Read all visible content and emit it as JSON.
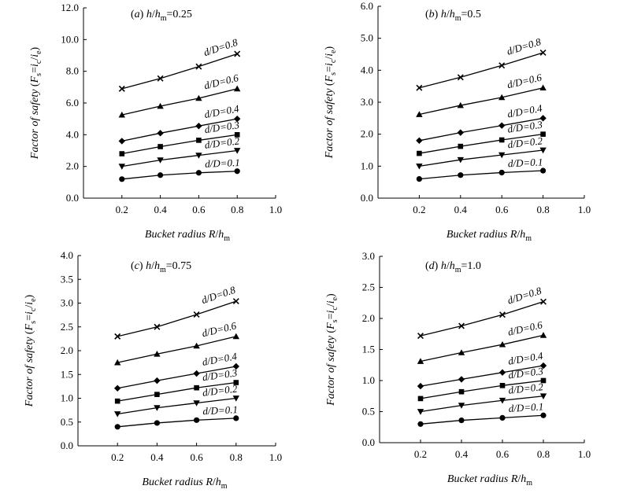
{
  "chart_data": [
    {
      "type": "line",
      "title": "(a) h/hm=0.25",
      "xlabel": "Bucket radius R/hm",
      "ylabel": "Factor of safety (Fs=ic/ie)",
      "xlim": [
        0.0,
        1.0
      ],
      "ylim": [
        0.0,
        12.0
      ],
      "xticks": [
        "0.2",
        "0.4",
        "0.6",
        "0.8",
        "1.0"
      ],
      "yticks": [
        "0.0",
        "2.0",
        "4.0",
        "6.0",
        "8.0",
        "10.0",
        "12.0"
      ],
      "x": [
        0.2,
        0.4,
        0.6,
        0.8
      ],
      "series": [
        {
          "name": "d/D=0.1",
          "marker": "circle",
          "values": [
            1.2,
            1.45,
            1.6,
            1.7
          ]
        },
        {
          "name": "d/D=0.2",
          "marker": "triangle-down",
          "values": [
            2.0,
            2.4,
            2.7,
            3.0
          ]
        },
        {
          "name": "d/D=0.3",
          "marker": "square",
          "values": [
            2.8,
            3.25,
            3.65,
            4.0
          ]
        },
        {
          "name": "d/D=0.4",
          "marker": "diamond",
          "values": [
            3.6,
            4.1,
            4.55,
            5.0
          ]
        },
        {
          "name": "d/D=0.6",
          "marker": "triangle-up",
          "values": [
            5.25,
            5.8,
            6.3,
            6.9
          ]
        },
        {
          "name": "d/D=0.8",
          "marker": "x",
          "values": [
            6.9,
            7.55,
            8.3,
            9.1
          ]
        }
      ]
    },
    {
      "type": "line",
      "title": "(b) h/hm=0.5",
      "xlabel": "Bucket radius R/hm",
      "ylabel": "Factor of safety (Fs=ic/ie)",
      "xlim": [
        0.0,
        1.0
      ],
      "ylim": [
        0.0,
        6.0
      ],
      "xticks": [
        "0.2",
        "0.4",
        "0.6",
        "0.8",
        "1.0"
      ],
      "yticks": [
        "0.0",
        "1.0",
        "2.0",
        "3.0",
        "4.0",
        "5.0",
        "6.0"
      ],
      "x": [
        0.2,
        0.4,
        0.6,
        0.8
      ],
      "series": [
        {
          "name": "d/D=0.1",
          "marker": "circle",
          "values": [
            0.6,
            0.72,
            0.8,
            0.86
          ]
        },
        {
          "name": "d/D=0.2",
          "marker": "triangle-down",
          "values": [
            1.0,
            1.2,
            1.35,
            1.5
          ]
        },
        {
          "name": "d/D=0.3",
          "marker": "square",
          "values": [
            1.4,
            1.62,
            1.82,
            2.0
          ]
        },
        {
          "name": "d/D=0.4",
          "marker": "diamond",
          "values": [
            1.8,
            2.05,
            2.27,
            2.5
          ]
        },
        {
          "name": "d/D=0.6",
          "marker": "triangle-up",
          "values": [
            2.62,
            2.9,
            3.15,
            3.45
          ]
        },
        {
          "name": "d/D=0.8",
          "marker": "x",
          "values": [
            3.45,
            3.78,
            4.15,
            4.55
          ]
        }
      ]
    },
    {
      "type": "line",
      "title": "(c) h/hm=0.75",
      "xlabel": "Bucket radius R/hm",
      "ylabel": "Factor of safety (Fs=ic/ie)",
      "xlim": [
        0.0,
        1.0
      ],
      "ylim": [
        0.0,
        4.0
      ],
      "xticks": [
        "0.2",
        "0.4",
        "0.6",
        "0.8",
        "1.0"
      ],
      "yticks": [
        "0.0",
        "0.5",
        "1.0",
        "1.5",
        "2.0",
        "2.5",
        "3.0",
        "3.5",
        "4.0"
      ],
      "x": [
        0.2,
        0.4,
        0.6,
        0.8
      ],
      "series": [
        {
          "name": "d/D=0.1",
          "marker": "circle",
          "values": [
            0.4,
            0.48,
            0.54,
            0.58
          ]
        },
        {
          "name": "d/D=0.2",
          "marker": "triangle-down",
          "values": [
            0.67,
            0.8,
            0.9,
            1.0
          ]
        },
        {
          "name": "d/D=0.3",
          "marker": "square",
          "values": [
            0.94,
            1.08,
            1.22,
            1.33
          ]
        },
        {
          "name": "d/D=0.4",
          "marker": "diamond",
          "values": [
            1.21,
            1.37,
            1.52,
            1.67
          ]
        },
        {
          "name": "d/D=0.6",
          "marker": "triangle-up",
          "values": [
            1.75,
            1.93,
            2.1,
            2.3
          ]
        },
        {
          "name": "d/D=0.8",
          "marker": "x",
          "values": [
            2.3,
            2.5,
            2.76,
            3.04
          ]
        }
      ]
    },
    {
      "type": "line",
      "title": "(d) h/hm=1.0",
      "xlabel": "Bucket radius R/hm",
      "ylabel": "Factor of safety (Fs=ic/ie)",
      "xlim": [
        0.0,
        1.0
      ],
      "ylim": [
        0.0,
        3.0
      ],
      "xticks": [
        "0.2",
        "0.4",
        "0.6",
        "0.8",
        "1.0"
      ],
      "yticks": [
        "0.0",
        "0.5",
        "1.0",
        "1.5",
        "2.0",
        "2.5",
        "3.0"
      ],
      "x": [
        0.2,
        0.4,
        0.6,
        0.8
      ],
      "series": [
        {
          "name": "d/D=0.1",
          "marker": "circle",
          "values": [
            0.3,
            0.36,
            0.4,
            0.44
          ]
        },
        {
          "name": "d/D=0.2",
          "marker": "triangle-down",
          "values": [
            0.5,
            0.6,
            0.68,
            0.75
          ]
        },
        {
          "name": "d/D=0.3",
          "marker": "square",
          "values": [
            0.71,
            0.82,
            0.92,
            1.0
          ]
        },
        {
          "name": "d/D=0.4",
          "marker": "diamond",
          "values": [
            0.91,
            1.02,
            1.13,
            1.24
          ]
        },
        {
          "name": "d/D=0.6",
          "marker": "triangle-up",
          "values": [
            1.31,
            1.45,
            1.58,
            1.73
          ]
        },
        {
          "name": "d/D=0.8",
          "marker": "x",
          "values": [
            1.72,
            1.88,
            2.06,
            2.27
          ]
        }
      ]
    }
  ]
}
